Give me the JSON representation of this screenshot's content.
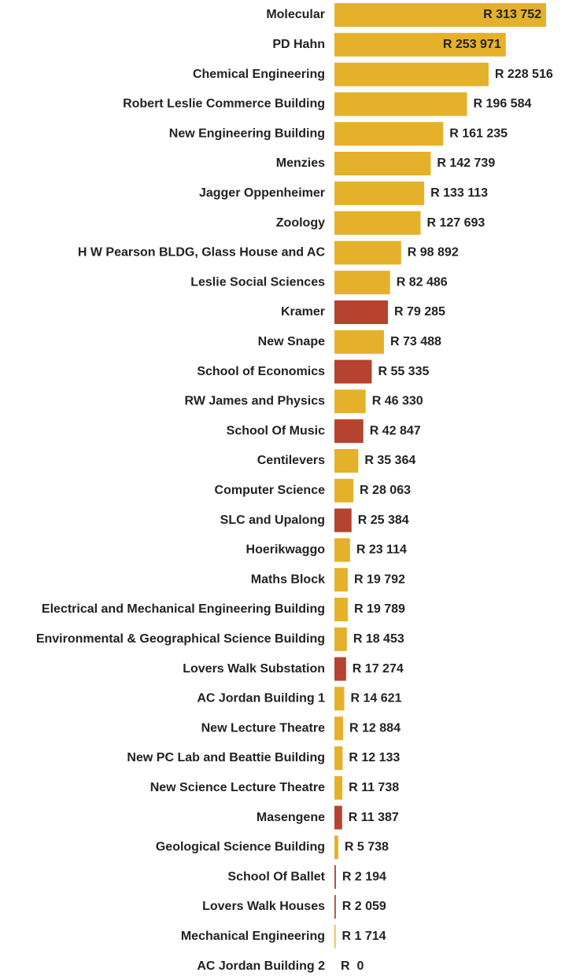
{
  "chart_data": {
    "type": "bar",
    "orientation": "horizontal",
    "categories": [
      "Molecular",
      "PD Hahn",
      "Chemical Engineering",
      "Robert Leslie Commerce Building",
      "New Engineering Building",
      "Menzies",
      "Jagger Oppenheimer",
      "Zoology",
      "H W Pearson BLDG, Glass House and AC",
      "Leslie Social Sciences",
      "Kramer",
      "New Snape",
      "School of Economics",
      "RW James and Physics",
      "School Of Music",
      "Centilevers",
      "Computer Science",
      "SLC and Upalong",
      "Hoerikwaggo",
      "Maths Block",
      "Electrical and Mechanical Engineering Building",
      "Environmental & Geographical Science Building",
      "Lovers Walk Substation",
      "AC Jordan Building 1",
      "New Lecture Theatre",
      "New PC Lab and Beattie Building",
      "New Science Lecture Theatre",
      "Masengene",
      "Geological Science Building",
      "School Of Ballet",
      "Lovers Walk Houses",
      "Mechanical Engineering",
      "AC Jordan Building 2"
    ],
    "values": [
      313752,
      253971,
      228516,
      196584,
      161235,
      142739,
      133113,
      127693,
      98892,
      82486,
      79285,
      73488,
      55335,
      46330,
      42847,
      35364,
      28063,
      25384,
      23114,
      19792,
      19789,
      18453,
      17274,
      14621,
      12884,
      12133,
      11738,
      11387,
      5738,
      2194,
      2059,
      1714,
      0
    ],
    "value_labels": [
      "R 313 752",
      "R 253 971",
      "R 228 516",
      "R 196 584",
      "R 161 235",
      "R 142 739",
      "R 133 113",
      "R 127 693",
      "R 98 892",
      "R 82 486",
      "R 79 285",
      "R 73 488",
      "R 55 335",
      "R 46 330",
      "R 42 847",
      "R 35 364",
      "R 28 063",
      "R 25 384",
      "R 23 114",
      "R 19 792",
      "R 19 789",
      "R 18 453",
      "R 17 274",
      "R 14 621",
      "R 12 884",
      "R 12 133",
      "R 11 738",
      "R 11 387",
      "R 5 738",
      "R 2 194",
      "R 2 059",
      "R 1 714",
      "R  0"
    ],
    "colors": [
      "#e5b12b",
      "#e5b12b",
      "#e5b12b",
      "#e5b12b",
      "#e5b12b",
      "#e5b12b",
      "#e5b12b",
      "#e5b12b",
      "#e5b12b",
      "#e5b12b",
      "#b5432f",
      "#e5b12b",
      "#b5432f",
      "#e5b12b",
      "#b5432f",
      "#e5b12b",
      "#e5b12b",
      "#b5432f",
      "#e5b12b",
      "#e5b12b",
      "#e5b12b",
      "#e5b12b",
      "#b5432f",
      "#e5b12b",
      "#e5b12b",
      "#e5b12b",
      "#e5b12b",
      "#b5432f",
      "#e5b12b",
      "#b5432f",
      "#b5432f",
      "#e5b12b",
      "#e5b12b"
    ]
  }
}
